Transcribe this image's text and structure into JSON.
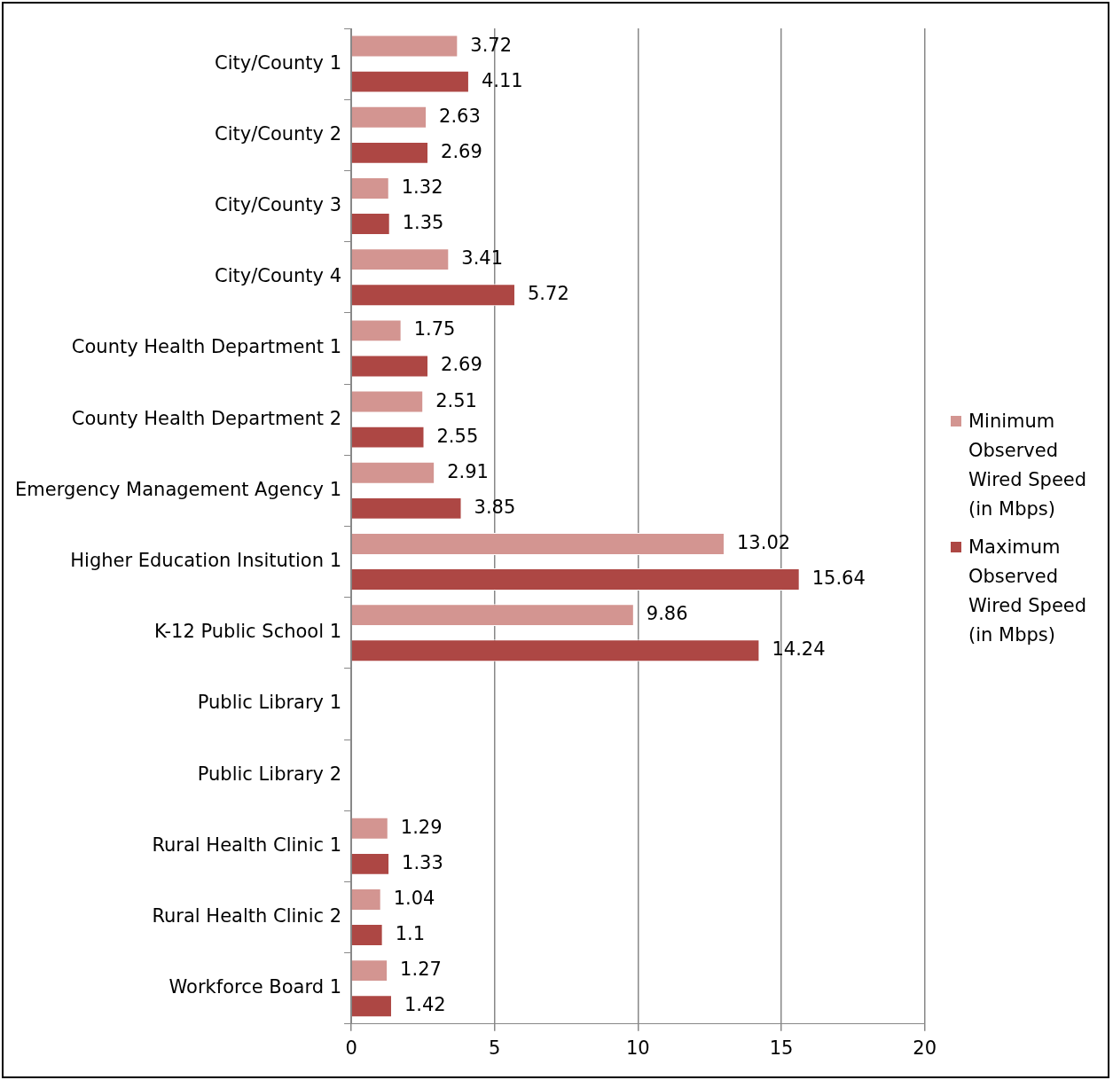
{
  "chart_data": {
    "type": "bar",
    "orientation": "horizontal",
    "categories": [
      "City/County 1",
      "City/County 2",
      "City/County 3",
      "City/County 4",
      "County Health Department 1",
      "County Health Department 2",
      "Emergency Management Agency 1",
      "Higher Education Insitution 1",
      "K-12 Public School 1",
      "Public Library 1",
      "Public Library 2",
      "Rural Health Clinic 1",
      "Rural Health Clinic 2",
      "Workforce Board 1"
    ],
    "series": [
      {
        "name": "Minimum Observed Wired Speed (in Mbps)",
        "color": "#d39591",
        "values": [
          3.72,
          2.63,
          1.32,
          3.41,
          1.75,
          2.51,
          2.91,
          13.02,
          9.86,
          null,
          null,
          1.29,
          1.04,
          1.27
        ]
      },
      {
        "name": "Maximum Observed Wired Speed (in Mbps)",
        "color": "#ad4744",
        "values": [
          4.11,
          2.69,
          1.35,
          5.72,
          2.69,
          2.55,
          3.85,
          15.64,
          14.24,
          null,
          null,
          1.33,
          1.1,
          1.42
        ]
      }
    ],
    "xlim": [
      0,
      20
    ],
    "xticks": [
      0,
      5,
      10,
      15,
      20
    ],
    "grid": "x",
    "legend": "right",
    "data_labels": true
  }
}
